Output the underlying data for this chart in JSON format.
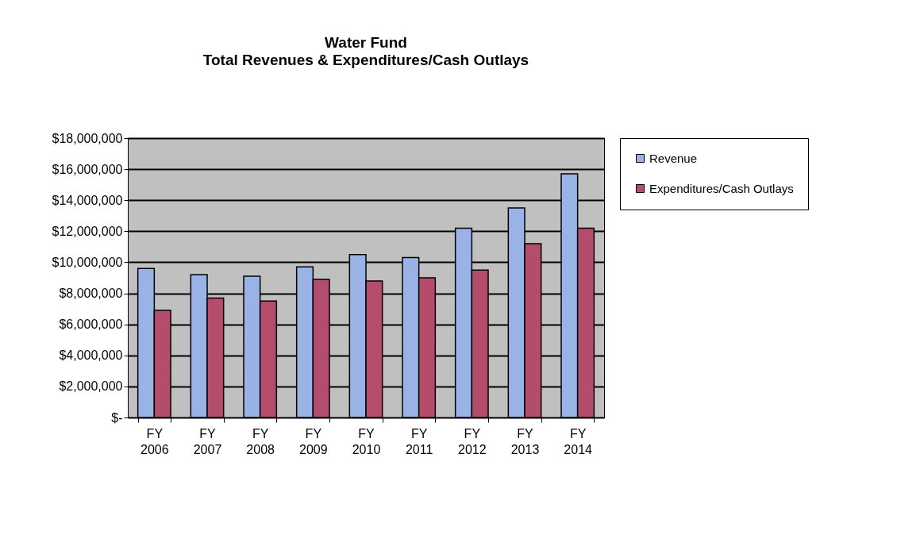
{
  "chart_data": {
    "type": "bar",
    "title": "Water Fund",
    "subtitle": "Total Revenues & Expenditures/Cash Outlays",
    "categories": [
      "FY 2006",
      "FY 2007",
      "FY 2008",
      "FY 2009",
      "FY 2010",
      "FY 2011",
      "FY 2012",
      "FY 2013",
      "FY 2014"
    ],
    "series": [
      {
        "name": "Revenue",
        "color": "#99b3e6",
        "values": [
          9600000,
          9200000,
          9100000,
          9700000,
          10500000,
          10300000,
          12200000,
          13500000,
          15700000
        ]
      },
      {
        "name": "Expenditures/Cash Outlays",
        "color": "#b34d6b",
        "values": [
          6900000,
          7700000,
          7500000,
          8900000,
          8800000,
          9000000,
          9500000,
          11200000,
          12200000
        ]
      }
    ],
    "ylim": [
      0,
      18000000
    ],
    "yticks": [
      {
        "value": 0,
        "label": "$-"
      },
      {
        "value": 2000000,
        "label": "$2,000,000"
      },
      {
        "value": 4000000,
        "label": "$4,000,000"
      },
      {
        "value": 6000000,
        "label": "$6,000,000"
      },
      {
        "value": 8000000,
        "label": "$8,000,000"
      },
      {
        "value": 10000000,
        "label": "$10,000,000"
      },
      {
        "value": 12000000,
        "label": "$12,000,000"
      },
      {
        "value": 14000000,
        "label": "$14,000,000"
      },
      {
        "value": 16000000,
        "label": "$16,000,000"
      },
      {
        "value": 18000000,
        "label": "$18,000,000"
      }
    ],
    "grid": "y",
    "legend": "right"
  }
}
